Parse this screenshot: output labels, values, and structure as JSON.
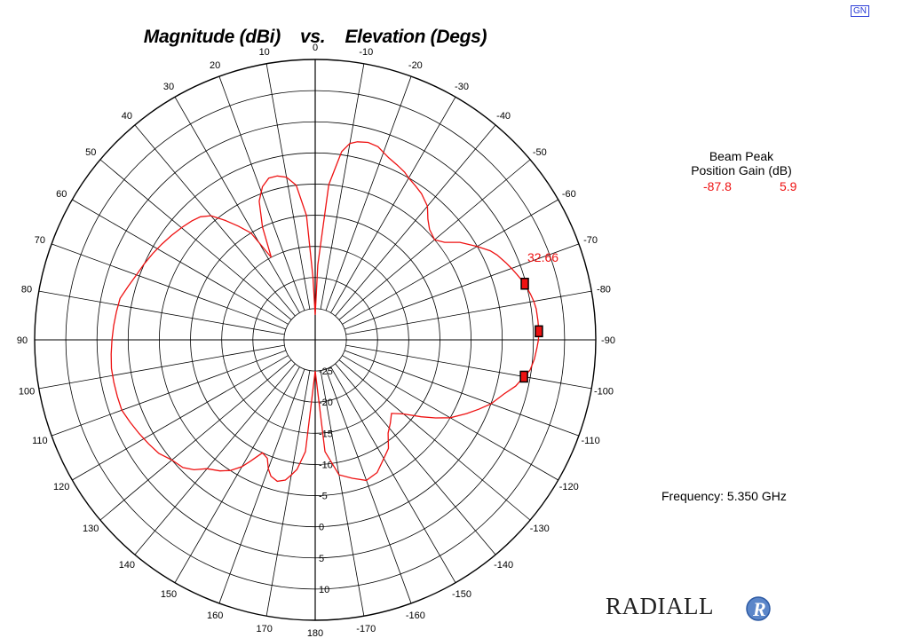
{
  "badge": "GN",
  "title": "Magnitude (dBi)    vs.    Elevation (Degs)",
  "beam_peak": {
    "heading_line1": "Beam Peak",
    "heading_line2": "Position  Gain (dB)",
    "position": "-87.8",
    "gain": "5.9"
  },
  "frequency_text": "Frequency:  5.350  GHz",
  "logo_text": "RADIALL",
  "logo_mark": "R",
  "colors": {
    "trace": "#ee1111",
    "grid": "#000000",
    "badge": "#2a3bd6"
  },
  "chart_data": {
    "type": "polar-line",
    "title": "Magnitude (dBi)    vs.    Elevation (Degs)",
    "angle_labels": [
      "0",
      "-10",
      "-20",
      "-30",
      "-40",
      "-50",
      "-60",
      "-70",
      "-80",
      "-90",
      "-100",
      "-110",
      "-120",
      "-130",
      "-140",
      "-150",
      "-160",
      "-170",
      "180",
      "170",
      "160",
      "150",
      "140",
      "130",
      "120",
      "110",
      "100",
      "90",
      "80",
      "70",
      "60",
      "50",
      "40",
      "30",
      "20",
      "10"
    ],
    "angle_values_deg": [
      0,
      -10,
      -20,
      -30,
      -40,
      -50,
      -60,
      -70,
      -80,
      -90,
      -100,
      -110,
      -120,
      -130,
      -140,
      -150,
      -160,
      -170,
      180,
      170,
      160,
      150,
      140,
      130,
      120,
      110,
      100,
      90,
      80,
      70,
      60,
      50,
      40,
      30,
      20,
      10
    ],
    "radial_labels": [
      "-25",
      "-20",
      "-15",
      "-10",
      "-5",
      "0",
      "5",
      "10"
    ],
    "radial_values_dBi": [
      -25,
      -20,
      -15,
      -10,
      -5,
      0,
      5,
      10
    ],
    "radial_range_dBi": [
      -30,
      15
    ],
    "peak_annotation": "32.66",
    "series": [
      {
        "angle_deg": [
          0,
          -2,
          -5,
          -8,
          -10,
          -12,
          -15,
          -18,
          -20,
          -22,
          -25,
          -28,
          -30,
          -33,
          -36,
          -40,
          -43,
          -46,
          -50,
          -53,
          -56,
          -60,
          -63,
          -65,
          -68,
          -70,
          -72,
          -75,
          -78,
          -80,
          -82,
          -85,
          -87.8,
          -90,
          -92,
          -95,
          -98,
          -100,
          -103,
          -106,
          -110,
          -113,
          -116,
          -120,
          -123,
          -126,
          -130,
          -134,
          -138,
          -142,
          -146,
          -150,
          -155,
          -160,
          -165,
          -170,
          -175,
          180,
          175,
          172,
          170,
          168,
          165,
          162,
          160,
          158,
          155,
          152,
          150,
          147,
          144,
          140,
          137,
          134,
          130,
          126,
          122,
          118,
          114,
          110,
          106,
          102,
          98,
          94,
          90,
          86,
          82,
          78,
          74,
          70,
          66,
          62,
          58,
          54,
          50,
          46,
          43,
          40,
          37,
          34,
          31,
          28,
          25,
          22,
          19,
          16,
          13,
          10,
          7,
          4,
          2
        ],
        "magnitude_dBi": [
          -26,
          -18,
          -5,
          0.5,
          2,
          2.5,
          2.8,
          2.6,
          2,
          1.5,
          1,
          0.5,
          0,
          -0.5,
          -1,
          -2,
          -3.5,
          -4.5,
          -5,
          -4,
          -2,
          0,
          1.5,
          2.2,
          3,
          3.5,
          4,
          4.8,
          5.3,
          5.6,
          5.8,
          5.85,
          5.9,
          5.8,
          5.6,
          5.3,
          4.8,
          4,
          3,
          1.5,
          0,
          -1.5,
          -3,
          -5,
          -7,
          -9,
          -11.5,
          -13,
          -12,
          -11,
          -9,
          -8,
          -6.5,
          -6,
          -7,
          -8,
          -12,
          -25,
          -12,
          -9,
          -8,
          -7,
          -6.5,
          -7,
          -8,
          -9.5,
          -10,
          -8,
          -6.5,
          -5,
          -4,
          -3,
          -1.5,
          -0.5,
          0,
          1,
          1.5,
          2,
          2.5,
          3,
          3,
          3,
          3,
          2.8,
          2.6,
          2.4,
          2.2,
          2,
          1.2,
          0.5,
          0,
          -0.5,
          -1,
          -1.5,
          -2,
          -2.5,
          -3,
          -4,
          -6,
          -8,
          -10,
          -15,
          -10,
          -6,
          -4,
          -3,
          -3,
          -3.5,
          -5,
          -10,
          -20
        ]
      }
    ],
    "markers_angle_deg": [
      -75,
      -87.8,
      -100
    ],
    "grid": true
  }
}
